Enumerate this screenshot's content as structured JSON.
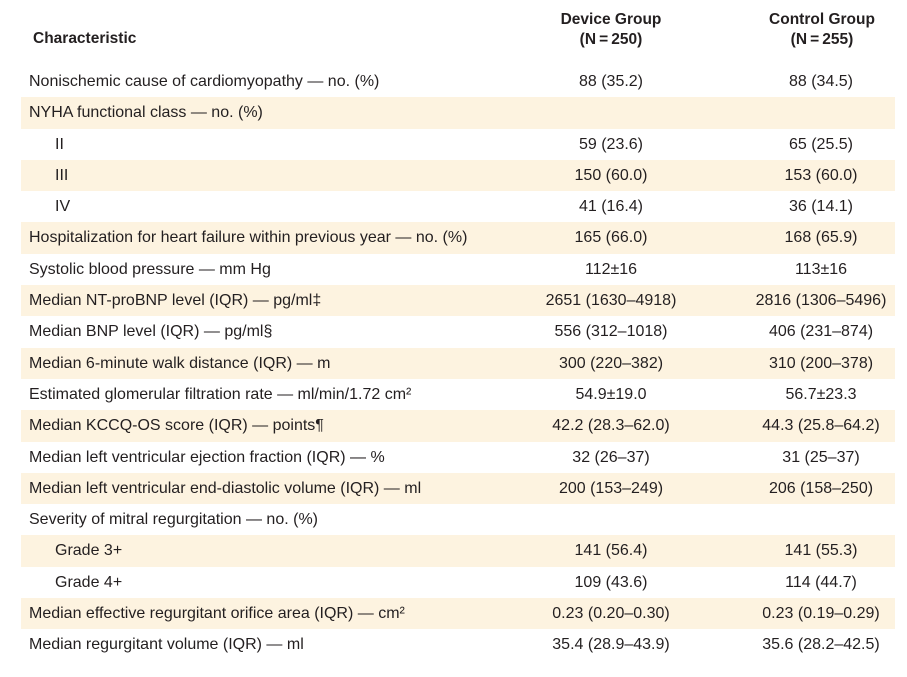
{
  "header": {
    "characteristic": "Characteristic",
    "device_group": "Device Group",
    "device_n": "(N = 250)",
    "control_group": "Control Group",
    "control_n": "(N = 255)"
  },
  "rows": [
    {
      "label": "Nonischemic cause of cardiomyopathy — no. (%)",
      "device": "88 (35.2)",
      "control": "88 (34.5)"
    },
    {
      "label": "NYHA functional class — no. (%)",
      "device": "",
      "control": ""
    },
    {
      "label": "II",
      "device": "59 (23.6)",
      "control": "65 (25.5)"
    },
    {
      "label": "III",
      "device": "150 (60.0)",
      "control": "153 (60.0)"
    },
    {
      "label": "IV",
      "device": "41 (16.4)",
      "control": "36 (14.1)"
    },
    {
      "label": "Hospitalization for heart failure within previous year — no. (%)",
      "device": "165 (66.0)",
      "control": "168 (65.9)"
    },
    {
      "label": "Systolic blood pressure — mm Hg",
      "device": "112±16",
      "control": "113±16"
    },
    {
      "label": "Median NT-proBNP level (IQR) — pg/ml‡",
      "device": "2651 (1630–4918)",
      "control": "2816 (1306–5496)"
    },
    {
      "label": "Median BNP level (IQR) — pg/ml§",
      "device": "556 (312–1018)",
      "control": "406 (231–874)"
    },
    {
      "label": "Median 6-minute walk distance (IQR) — m",
      "device": "300 (220–382)",
      "control": "310 (200–378)"
    },
    {
      "label": "Estimated glomerular filtration rate — ml/min/1.72 cm²",
      "device": "54.9±19.0",
      "control": "56.7±23.3"
    },
    {
      "label": "Median KCCQ-OS score (IQR) — points¶",
      "device": "42.2 (28.3–62.0)",
      "control": "44.3 (25.8–64.2)"
    },
    {
      "label": "Median left ventricular ejection fraction (IQR) — %",
      "device": "32 (26–37)",
      "control": "31 (25–37)"
    },
    {
      "label": "Median left ventricular end-diastolic volume (IQR) — ml",
      "device": "200 (153–249)",
      "control": "206 (158–250)"
    },
    {
      "label": "Severity of mitral regurgitation — no. (%)",
      "device": "",
      "control": ""
    },
    {
      "label": "Grade 3+",
      "device": "141 (56.4)",
      "control": "141 (55.3)"
    },
    {
      "label": "Grade 4+",
      "device": "109 (43.6)",
      "control": "114 (44.7)"
    },
    {
      "label": "Median effective regurgitant orifice area (IQR) — cm²",
      "device": "0.23 (0.20–0.30)",
      "control": "0.23 (0.19–0.29)"
    },
    {
      "label": "Median regurgitant volume (IQR) — ml",
      "device": "35.4 (28.9–43.9)",
      "control": "35.6 (28.2–42.5)"
    }
  ],
  "colors": {
    "shade": "#fdf3e0",
    "text": "#231f20"
  }
}
